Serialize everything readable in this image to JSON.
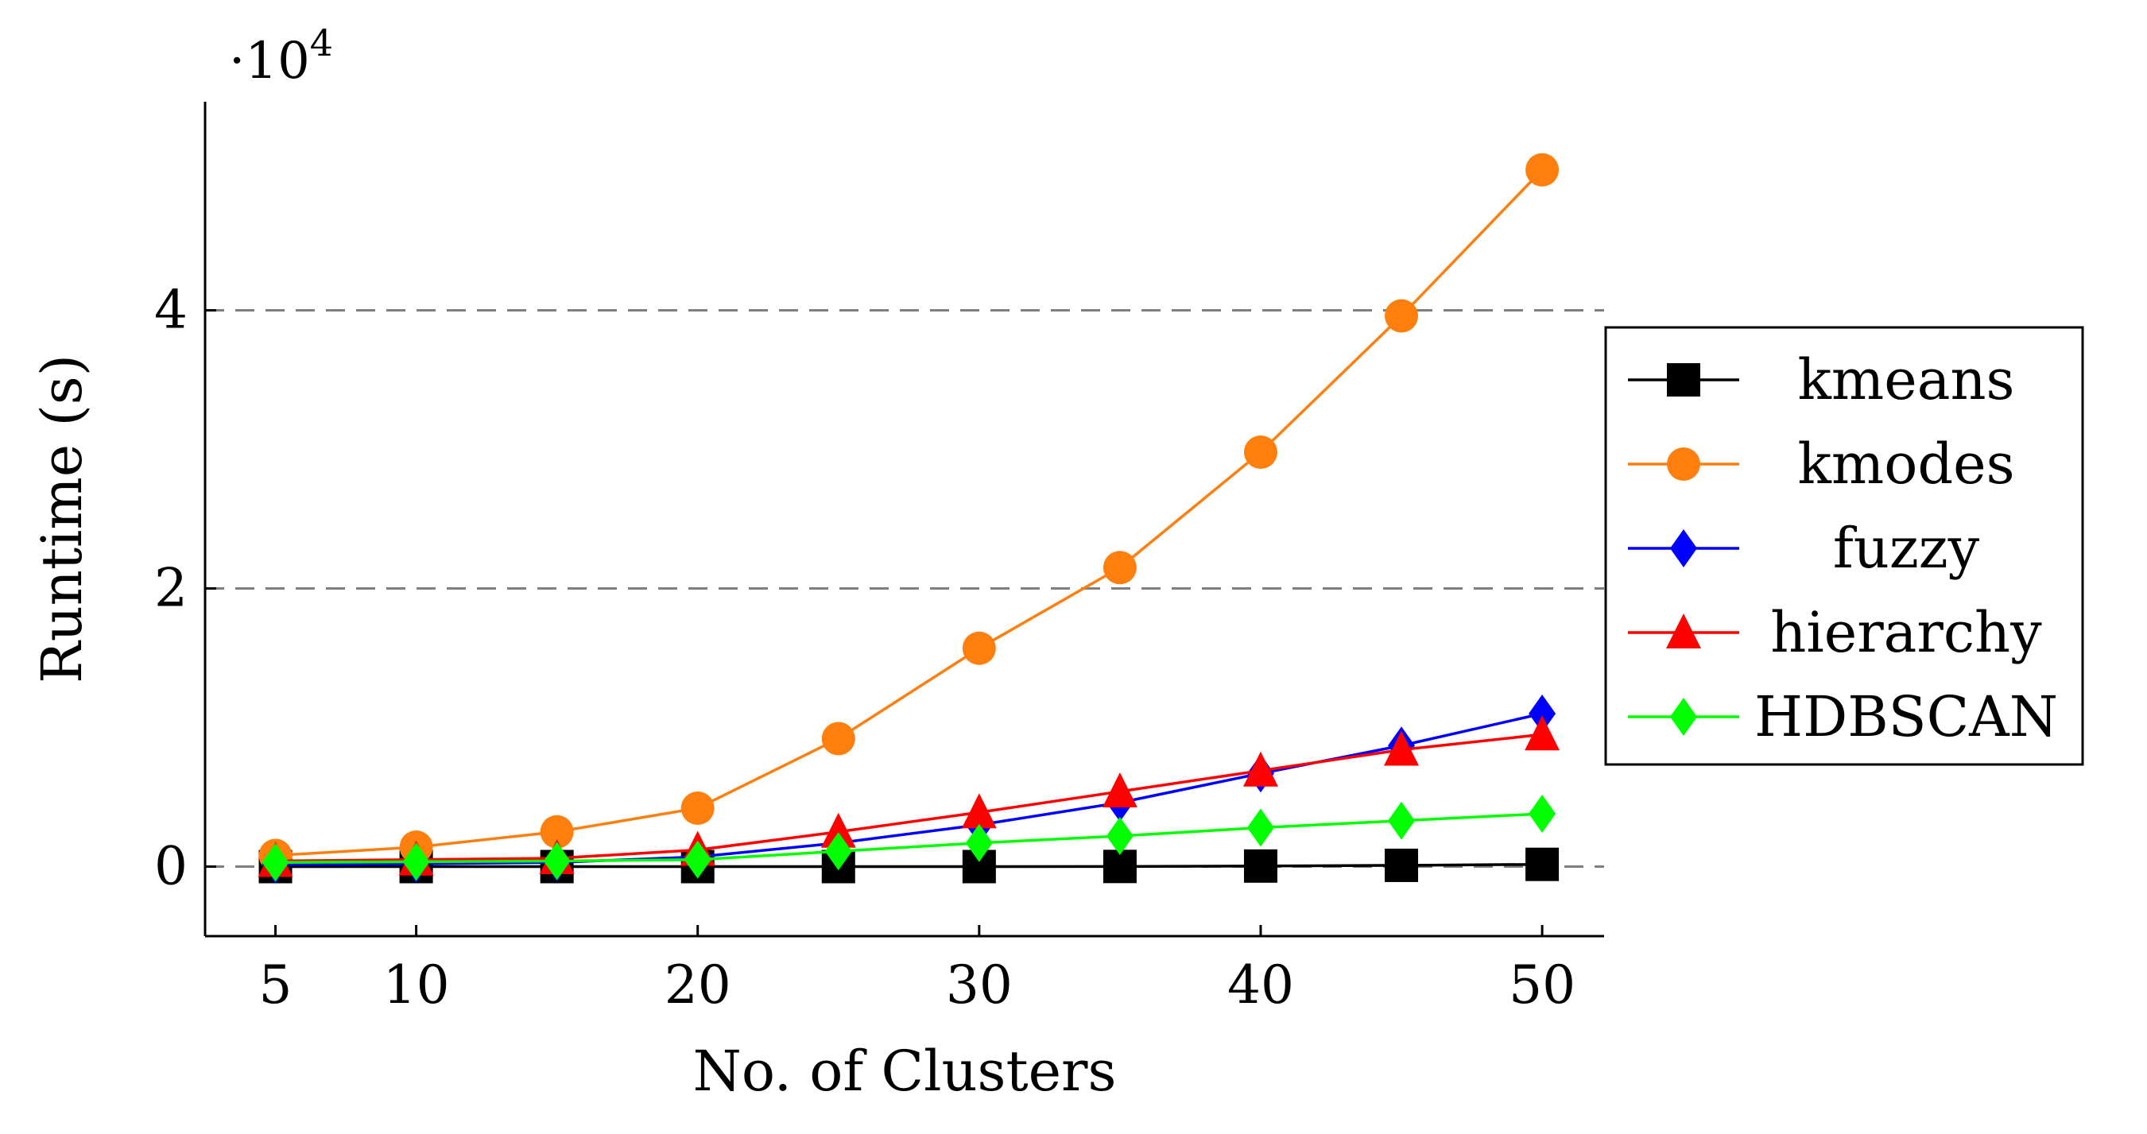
{
  "chart_data": {
    "type": "line",
    "title": "",
    "xlabel": "No. of Clusters",
    "ylabel": "Runtime (s)",
    "y_multiplier": "·10",
    "y_multiplier_exponent": "4",
    "x": [
      5,
      10,
      15,
      20,
      25,
      30,
      35,
      40,
      45,
      50
    ],
    "x_ticks": [
      5,
      10,
      20,
      30,
      40,
      50
    ],
    "x_tick_labels": [
      "5",
      "10",
      "20",
      "30",
      "40",
      "50"
    ],
    "xlim": [
      2.5,
      52.2
    ],
    "ylim": [
      -5000,
      55000
    ],
    "y_ticks": [
      0,
      20000,
      40000
    ],
    "y_tick_labels": [
      "0",
      "2",
      "4"
    ],
    "grid": "horizontal-dashed",
    "legend_position": "right",
    "series": [
      {
        "name": "kmeans",
        "color": "#000000",
        "marker": "square",
        "values": [
          0,
          0,
          0,
          0,
          0,
          0,
          10,
          40,
          90,
          160
        ]
      },
      {
        "name": "kmodes",
        "color": "#ff7f0e",
        "marker": "circle",
        "values": [
          800,
          1400,
          2500,
          4200,
          9200,
          15700,
          21500,
          29800,
          39600,
          50100
        ]
      },
      {
        "name": "fuzzy",
        "color": "#0000ff",
        "marker": "diamond",
        "values": [
          150,
          200,
          300,
          700,
          1700,
          3000,
          4600,
          6700,
          8700,
          11000
        ]
      },
      {
        "name": "hierarchy",
        "color": "#ff0000",
        "marker": "triangle",
        "values": [
          400,
          500,
          600,
          1200,
          2500,
          3900,
          5400,
          6900,
          8400,
          9500
        ]
      },
      {
        "name": "HDBSCAN",
        "color": "#00ff00",
        "marker": "diamond",
        "values": [
          300,
          350,
          400,
          500,
          1100,
          1700,
          2200,
          2800,
          3300,
          3800
        ]
      }
    ]
  }
}
